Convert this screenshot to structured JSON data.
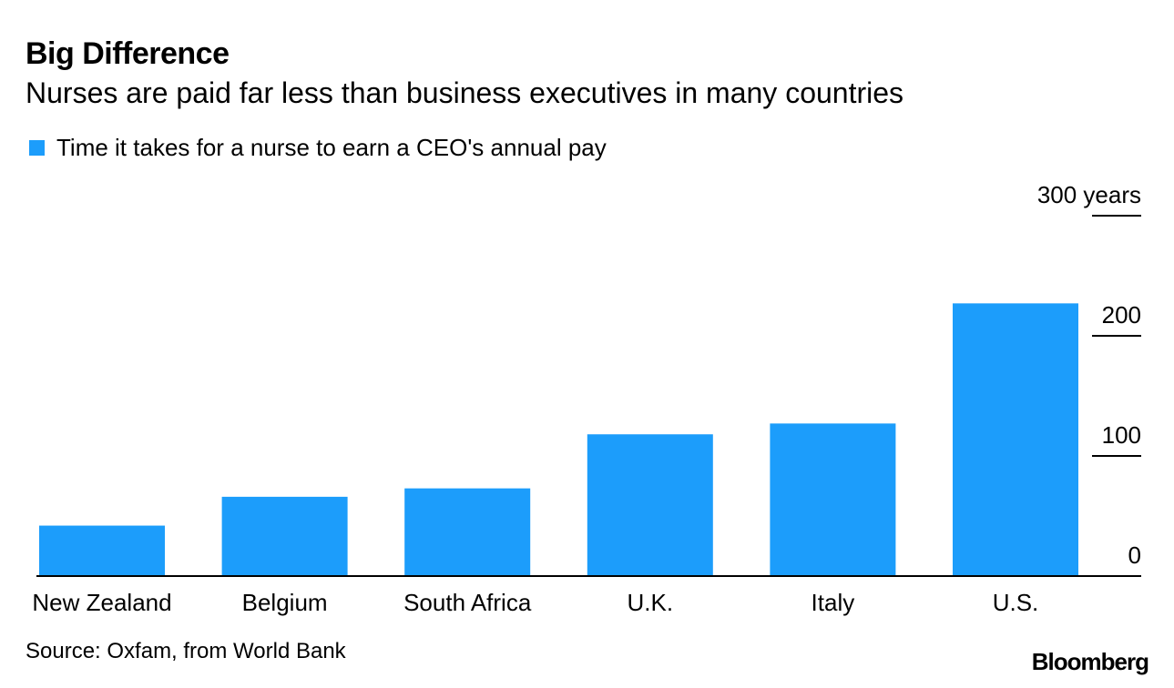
{
  "header": {
    "title": "Big Difference",
    "subtitle": "Nurses are paid far less than business executives in many countries"
  },
  "legend": {
    "label": "Time it takes for a nurse to earn a CEO's annual pay"
  },
  "colors": {
    "bar": "#1c9dfb",
    "axis": "#000000",
    "text": "#000000"
  },
  "chart_data": {
    "type": "bar",
    "title": "Big Difference",
    "subtitle": "Nurses are paid far less than business executives in many countries",
    "categories": [
      "New Zealand",
      "Belgium",
      "South Africa",
      "U.K.",
      "Italy",
      "U.S."
    ],
    "series": [
      {
        "name": "Time it takes for a nurse to earn a CEO's annual pay",
        "values": [
          42,
          66,
          73,
          118,
          127,
          227
        ]
      }
    ],
    "ylim": [
      0,
      300
    ],
    "yticks": [
      0,
      100,
      200,
      300
    ],
    "ytick_labels": [
      "0",
      "100",
      "200",
      "300 years"
    ],
    "yaxis_position": "right",
    "xlabel": "",
    "ylabel": "",
    "grid": false,
    "legend": "top-left"
  },
  "footer": {
    "source": "Source: Oxfam, from World Bank",
    "brand": "Bloomberg"
  }
}
